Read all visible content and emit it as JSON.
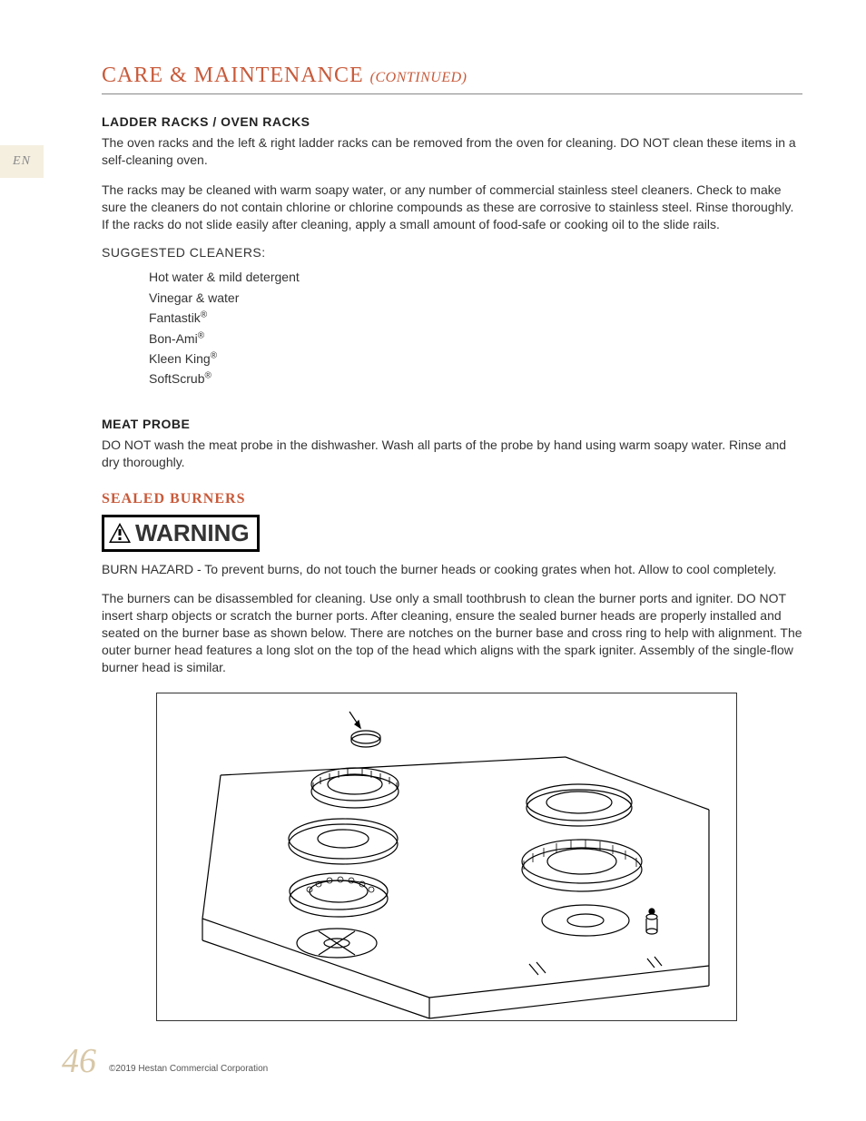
{
  "lang_tab": "EN",
  "title_main": "CARE & MAINTENANCE",
  "title_cont": "(CONTINUED)",
  "sections": {
    "racks": {
      "heading": "LADDER RACKS / OVEN RACKS",
      "p1": "The oven racks and the left & right ladder racks can be removed from the oven for cleaning.  DO NOT clean these items in a self-cleaning oven.",
      "p2": "The racks may be cleaned with warm soapy water, or any number of commercial stainless steel cleaners.  Check to make sure the cleaners do not contain chlorine or chlorine compounds as these are corrosive to stainless steel.  Rinse thoroughly.  If the racks do not slide easily after cleaning, apply a small amount of food-safe or cooking oil to the slide rails.",
      "suggested_label": "SUGGESTED CLEANERS:",
      "cleaners": [
        {
          "name": "Hot water & mild detergent",
          "reg": false
        },
        {
          "name": "Vinegar & water",
          "reg": false
        },
        {
          "name": "Fantastik",
          "reg": true
        },
        {
          "name": "Bon-Ami",
          "reg": true
        },
        {
          "name": "Kleen King",
          "reg": true
        },
        {
          "name": "SoftScrub",
          "reg": true
        }
      ]
    },
    "probe": {
      "heading": "MEAT PROBE",
      "p1": "DO NOT wash the meat probe in the dishwasher.  Wash all parts of the probe by hand using warm soapy water.  Rinse and dry thoroughly."
    },
    "burners": {
      "heading": "SEALED BURNERS",
      "warning_label": "WARNING",
      "p1": "BURN HAZARD - To prevent burns, do not touch the burner heads or cooking grates when hot.  Allow to cool completely.",
      "p2": "The burners can be disassembled for cleaning.  Use only a small toothbrush to clean the burner ports and igniter.  DO NOT insert sharp objects or scratch the burner ports.  After cleaning, ensure the sealed burner heads are properly installed and seated on the burner base as shown below.  There are notches on the burner base and cross ring to help with alignment.  The outer burner head features a long slot on the top of the head which aligns with the spark igniter.  Assembly of the single-flow burner head is similar."
    }
  },
  "diagram": {
    "type": "technical-illustration",
    "description": "Exploded isometric view of sealed burner assembly on cooktop surface showing stacked burner cap, cross ring, burner head, and base on left; assembled outer burner and base components on right; spark igniter pin visible.",
    "stroke_color": "#000000",
    "stroke_width": 1.2,
    "background_color": "#ffffff",
    "cooktop_edges": [
      [
        40,
        230,
        300,
        320
      ],
      [
        300,
        320,
        620,
        225
      ],
      [
        620,
        225,
        620,
        305
      ],
      [
        300,
        320,
        300,
        350
      ],
      [
        40,
        230,
        40,
        255
      ],
      [
        80,
        80,
        460,
        60
      ],
      [
        460,
        60,
        620,
        120
      ],
      [
        80,
        80,
        40,
        230
      ]
    ]
  },
  "page_number": "46",
  "copyright": "©2019 Hestan Commercial Corporation",
  "colors": {
    "accent": "#c85a3a",
    "tab_bg": "#f5efe0",
    "page_num": "#d8c8a8",
    "text": "#333333",
    "rule": "#888888"
  }
}
